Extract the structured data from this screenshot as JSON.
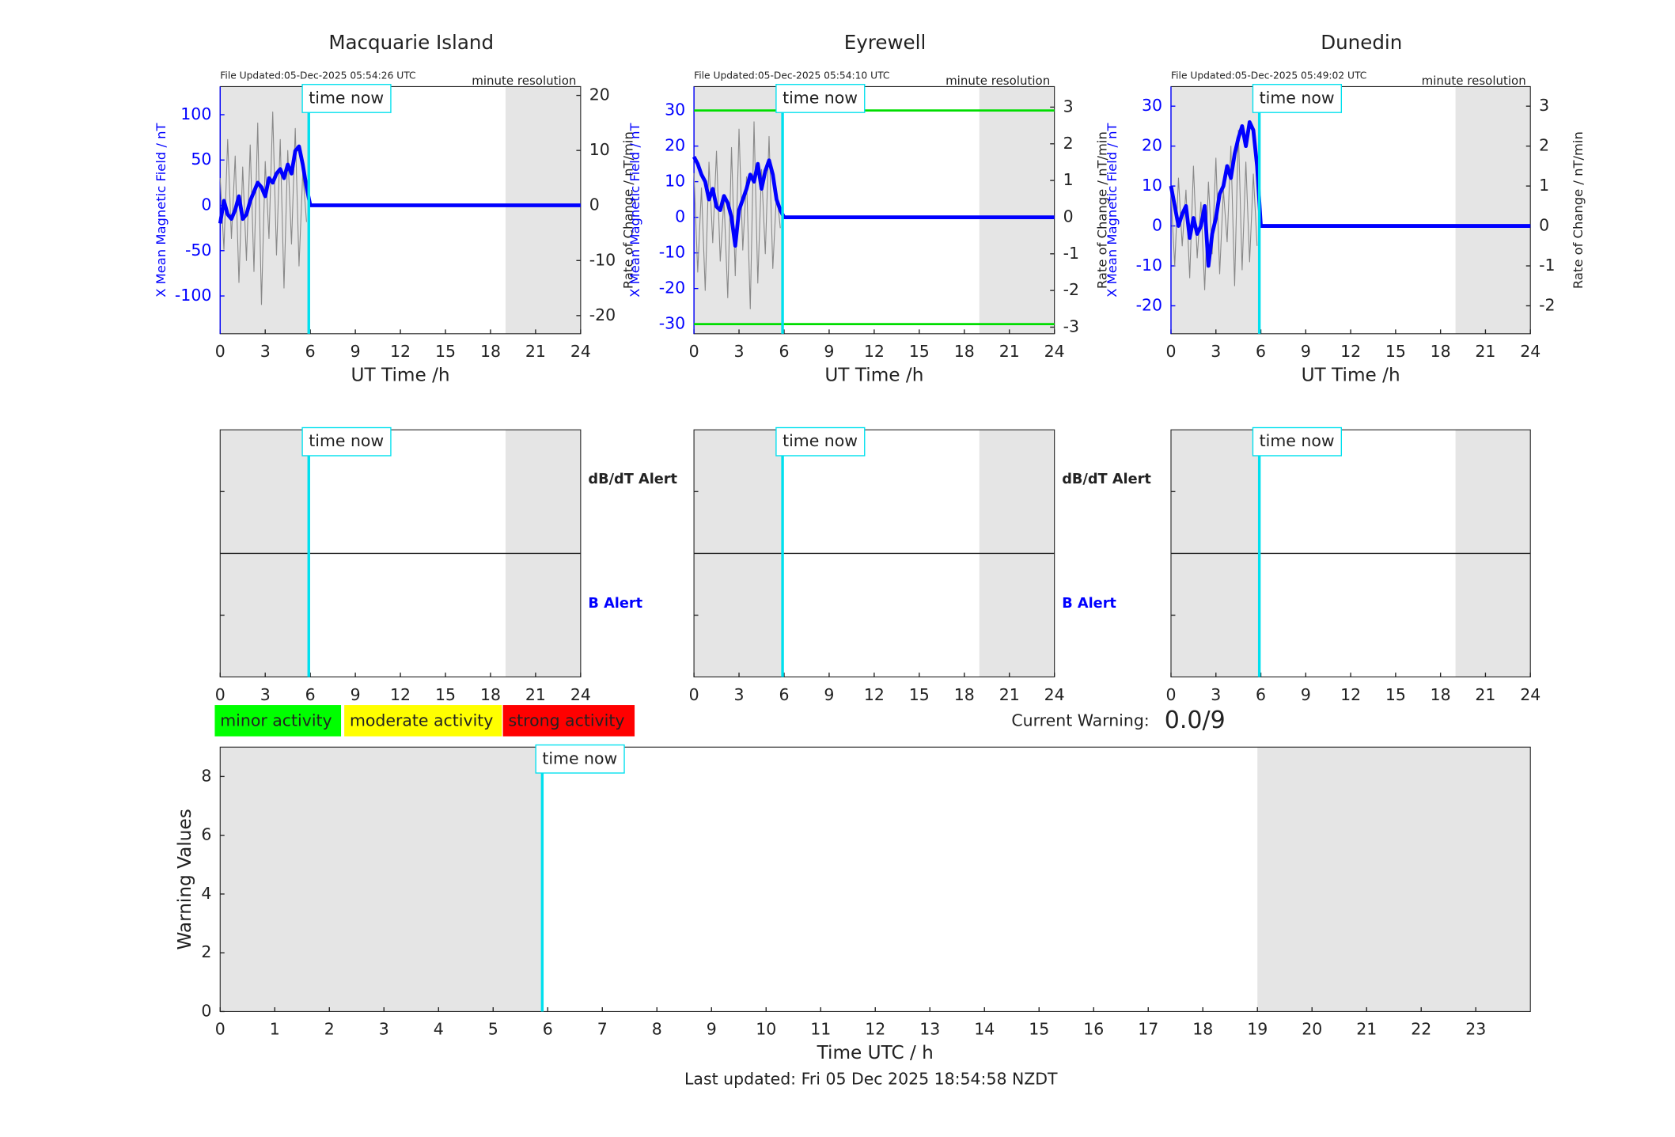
{
  "chart_data": [
    {
      "type": "line",
      "title": "Macquarie Island",
      "file_updated": "File Updated:05-Dec-2025 05:54:26 UTC",
      "resolution": "minute resolution",
      "xlabel": "UT Time /h",
      "ylabel": "X Mean Magnetic Field / nT",
      "y2label": "Rate of Change / nT/min",
      "xlim": [
        0,
        24
      ],
      "xticks": [
        0,
        3,
        6,
        9,
        12,
        15,
        18,
        21,
        24
      ],
      "ylim": [
        -141.7,
        131
      ],
      "yticks": [
        -100,
        -50,
        0,
        50,
        100
      ],
      "y2lim": [
        -23.3,
        21.6
      ],
      "y2ticks": [
        -20,
        -10,
        0,
        10,
        20
      ],
      "x": [
        0,
        0.25,
        0.5,
        0.75,
        1,
        1.25,
        1.5,
        1.75,
        2,
        2.25,
        2.5,
        2.75,
        3,
        3.25,
        3.5,
        3.75,
        4,
        4.25,
        4.5,
        4.75,
        5,
        5.25,
        5.5,
        5.75,
        6,
        24
      ],
      "series": [
        {
          "color": "#888888",
          "axis": "y2",
          "values": [
            5,
            -8,
            12,
            -6,
            9,
            -14,
            7,
            -10,
            11,
            -12,
            15,
            -18,
            8,
            -6,
            17,
            -9,
            12,
            -15,
            10,
            -7,
            14,
            -11,
            6,
            -3,
            null,
            null
          ]
        },
        {
          "color": "#0000ff",
          "axis": "y",
          "values": [
            -20,
            5,
            -10,
            -15,
            -5,
            10,
            -15,
            -10,
            5,
            15,
            25,
            20,
            10,
            30,
            25,
            35,
            40,
            30,
            45,
            35,
            60,
            65,
            45,
            20,
            0,
            0
          ]
        }
      ],
      "shaded": [
        [
          0,
          5.9
        ],
        [
          19,
          24
        ]
      ],
      "shade_color": "#e5e5e5",
      "time_now": {
        "value": 5.9,
        "label": "time now"
      },
      "time_color": "#00e0ee"
    },
    {
      "type": "line",
      "title": "Eyrewell",
      "file_updated": "File Updated:05-Dec-2025 05:54:10 UTC",
      "resolution": "minute resolution",
      "xlabel": "UT Time /h",
      "ylabel": "X Mean Magnetic Field / nT",
      "y2label": "Rate of Change / nT/min",
      "xlim": [
        0,
        24
      ],
      "xticks": [
        0,
        3,
        6,
        9,
        12,
        15,
        18,
        21,
        24
      ],
      "ylim": [
        -32.7,
        36.7
      ],
      "yticks": [
        -30,
        -20,
        -10,
        0,
        10,
        20,
        30
      ],
      "y2lim": [
        -3.18,
        3.56
      ],
      "y2ticks": [
        -3,
        -2,
        -1,
        0,
        1,
        2,
        3
      ],
      "x": [
        0,
        0.25,
        0.5,
        0.75,
        1,
        1.25,
        1.5,
        1.75,
        2,
        2.25,
        2.5,
        2.75,
        3,
        3.25,
        3.5,
        3.75,
        4,
        4.25,
        4.5,
        4.75,
        5,
        5.25,
        5.5,
        5.75,
        6,
        24
      ],
      "series": [
        {
          "color": "#888888",
          "axis": "y2",
          "values": [
            1.2,
            -1.5,
            0.8,
            -2,
            1.5,
            -0.7,
            1.8,
            -1.2,
            0.5,
            -2.2,
            1.9,
            -1.6,
            2.4,
            -0.9,
            1.1,
            -2.5,
            2.6,
            -1.8,
            1.3,
            -1,
            2.2,
            -1.4,
            0.7,
            -0.3,
            null,
            null
          ]
        },
        {
          "color": "#0000ff",
          "axis": "y",
          "values": [
            17,
            15,
            12,
            10,
            5,
            8,
            3,
            2,
            6,
            4,
            0,
            -8,
            2,
            5,
            8,
            12,
            10,
            15,
            8,
            13,
            16,
            12,
            5,
            2,
            0,
            0
          ]
        }
      ],
      "thresholds": [
        30,
        -30
      ],
      "threshold_color": "#00dd00",
      "shaded": [
        [
          0,
          5.9
        ],
        [
          19,
          24
        ]
      ],
      "shade_color": "#e5e5e5",
      "time_now": {
        "value": 5.9,
        "label": "time now"
      },
      "time_color": "#00e0ee"
    },
    {
      "type": "line",
      "title": "Dunedin",
      "file_updated": "File Updated:05-Dec-2025 05:49:02 UTC",
      "resolution": "minute resolution",
      "xlabel": "UT Time /h",
      "ylabel": "X Mean Magnetic Field / nT",
      "y2label": "Rate of Change / nT/min",
      "xlim": [
        0,
        24
      ],
      "xticks": [
        0,
        3,
        6,
        9,
        12,
        15,
        18,
        21,
        24
      ],
      "ylim": [
        -27,
        34.9
      ],
      "yticks": [
        -20,
        -10,
        0,
        10,
        20,
        30
      ],
      "y2lim": [
        -2.7,
        3.49
      ],
      "y2ticks": [
        -2,
        -1,
        0,
        1,
        2,
        3
      ],
      "x": [
        0,
        0.25,
        0.5,
        0.75,
        1,
        1.25,
        1.5,
        1.75,
        2,
        2.25,
        2.5,
        2.75,
        3,
        3.25,
        3.5,
        3.75,
        4,
        4.25,
        4.5,
        4.75,
        5,
        5.25,
        5.5,
        5.75,
        6,
        24
      ],
      "series": [
        {
          "color": "#888888",
          "axis": "y2",
          "values": [
            0.8,
            -1,
            1.2,
            -0.5,
            0.9,
            -1.3,
            1.5,
            -0.8,
            0.6,
            -1.6,
            1.1,
            -0.7,
            1.7,
            -1.2,
            0.9,
            -0.4,
            2,
            -1.5,
            2.4,
            -1.1,
            1.6,
            -0.9,
            1.3,
            -0.5,
            null,
            null
          ]
        },
        {
          "color": "#0000ff",
          "axis": "y",
          "values": [
            10,
            5,
            0,
            3,
            5,
            -3,
            2,
            -2,
            0,
            5,
            -10,
            -2,
            2,
            8,
            10,
            15,
            12,
            18,
            22,
            25,
            20,
            26,
            24,
            15,
            0,
            0
          ]
        }
      ],
      "shaded": [
        [
          0,
          5.9
        ],
        [
          19,
          24
        ]
      ],
      "shade_color": "#e5e5e5",
      "time_now": {
        "value": 5.9,
        "label": "time now"
      },
      "time_color": "#00e0ee"
    },
    {
      "type": "alert",
      "xlim": [
        0,
        24
      ],
      "xticks": [
        0,
        3,
        6,
        9,
        12,
        15,
        18,
        21,
        24
      ],
      "alert_labels": [
        {
          "text": "dB/dT Alert",
          "color": "#222222"
        },
        {
          "text": "B Alert",
          "color": "#0000ff"
        }
      ],
      "shaded": [
        [
          0,
          5.9
        ],
        [
          19,
          24
        ]
      ],
      "shade_color": "#e5e5e5",
      "time_now": {
        "value": 5.9,
        "label": "time now"
      },
      "time_color": "#00e0ee"
    },
    {
      "type": "alert",
      "xlim": [
        0,
        24
      ],
      "xticks": [
        0,
        3,
        6,
        9,
        12,
        15,
        18,
        21,
        24
      ],
      "alert_labels": [
        {
          "text": "dB/dT Alert",
          "color": "#222222"
        },
        {
          "text": "B Alert",
          "color": "#0000ff"
        }
      ],
      "shaded": [
        [
          0,
          5.9
        ],
        [
          19,
          24
        ]
      ],
      "shade_color": "#e5e5e5",
      "time_now": {
        "value": 5.9,
        "label": "time now"
      },
      "time_color": "#00e0ee"
    },
    {
      "type": "alert",
      "xlim": [
        0,
        24
      ],
      "xticks": [
        0,
        3,
        6,
        9,
        12,
        15,
        18,
        21,
        24
      ],
      "shaded": [
        [
          0,
          5.9
        ],
        [
          19,
          24
        ]
      ],
      "shade_color": "#e5e5e5",
      "time_now": {
        "value": 5.9,
        "label": "time now"
      },
      "time_color": "#00e0ee"
    },
    {
      "type": "warning",
      "xlabel": "Time UTC / h",
      "ylabel": "Warning Values",
      "xlim": [
        0,
        24
      ],
      "xticks": [
        0,
        1,
        2,
        3,
        4,
        5,
        6,
        7,
        8,
        9,
        10,
        11,
        12,
        13,
        14,
        15,
        16,
        17,
        18,
        19,
        20,
        21,
        22,
        23
      ],
      "ylim": [
        0,
        9
      ],
      "yticks": [
        0,
        2,
        4,
        6,
        8
      ],
      "shaded": [
        [
          0,
          5.9
        ],
        [
          19,
          24
        ]
      ],
      "shade_color": "#e5e5e5",
      "time_now": {
        "value": 5.9,
        "label": "time now"
      },
      "time_color": "#00e0ee"
    }
  ],
  "activity_legend": [
    {
      "label": "minor activity",
      "color": "#00ff00"
    },
    {
      "label": "moderate activity",
      "color": "#ffff00"
    },
    {
      "label": "strong activity",
      "color": "#ff0000"
    }
  ],
  "current_warning": {
    "label": "Current Warning:",
    "value": "0.0/9"
  },
  "footer": "Last updated: Fri 05 Dec 2025 18:54:58 NZDT"
}
